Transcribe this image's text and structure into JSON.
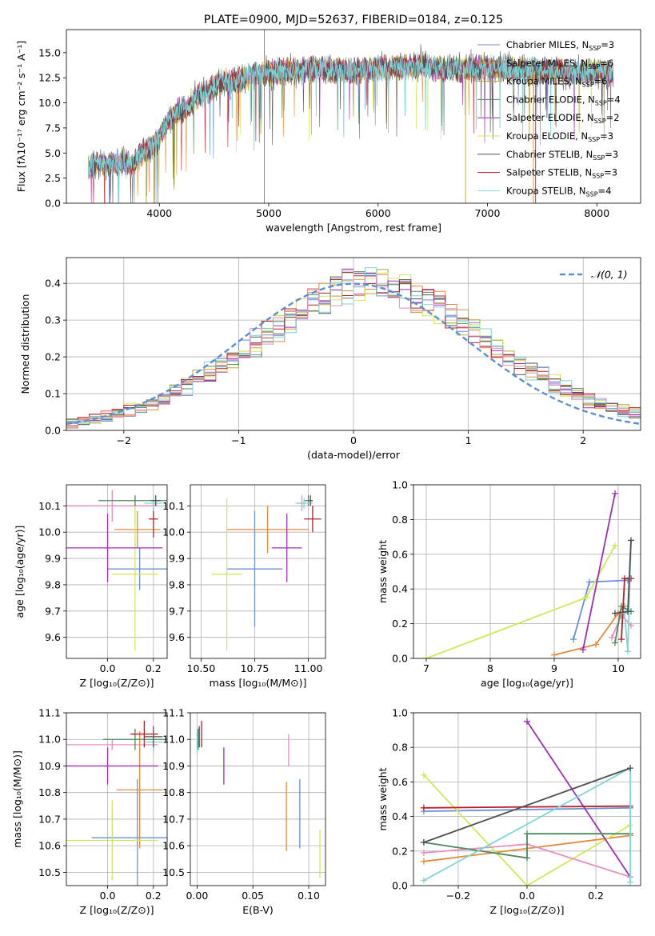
{
  "chart_data": [
    {
      "id": "spectrum",
      "type": "line",
      "title": "PLATE=0900, MJD=52637, FIBERID=0184, z=0.125",
      "xlabel": "wavelength [Angstrom, rest frame]",
      "ylabel": "Flux [fλ10⁻¹⁷ erg cm⁻² s⁻¹ A⁻¹]",
      "xlim": [
        3150,
        8400
      ],
      "ylim": [
        0,
        17.3
      ],
      "xticks": [
        4000,
        5000,
        6000,
        7000,
        8000
      ],
      "yticks": [
        0.0,
        2.5,
        5.0,
        7.5,
        10.0,
        12.5,
        15.0
      ],
      "legend_position": "right",
      "grid": false,
      "continuum": {
        "x": [
          3350,
          3450,
          3550,
          3650,
          3750,
          3850,
          3950,
          4050,
          4150,
          4250,
          4350,
          4450,
          4550,
          4650,
          4800,
          5000,
          5200,
          5400,
          5600,
          5800,
          6000,
          6200,
          6400,
          6600,
          6800,
          7000,
          7200,
          7400,
          7600,
          7800,
          8000,
          8150
        ],
        "y": [
          3.6,
          4.0,
          3.8,
          4.3,
          3.7,
          5.2,
          5.6,
          7.6,
          9.0,
          9.5,
          10.7,
          11.1,
          12.2,
          12.0,
          12.6,
          13.0,
          13.2,
          13.4,
          13.3,
          13.2,
          13.5,
          13.6,
          13.7,
          13.3,
          13.4,
          13.5,
          13.4,
          13.2,
          13.3,
          13.0,
          13.1,
          13.0
        ]
      },
      "series": [
        {
          "name": "Chabrier MILES, N_SSP=3",
          "label_main": "Chabrier MILES, N",
          "label_sub": "SSP",
          "label_tail": "=3",
          "color": "#6a8fd6"
        },
        {
          "name": "Salpeter MILES, N_SSP=6",
          "label_main": "Salpeter MILES, N",
          "label_sub": "SSP",
          "label_tail": "=6",
          "color": "#e5893a"
        },
        {
          "name": "Kroupa MILES, N_SSP=6",
          "label_main": "Kroupa MILES, N",
          "label_sub": "SSP",
          "label_tail": "=6",
          "color": "#b9a33b"
        },
        {
          "name": "Chabrier ELODIE, N_SSP=4",
          "label_main": "Chabrier ELODIE, N",
          "label_sub": "SSP",
          "label_tail": "=4",
          "color": "#4e8a5e"
        },
        {
          "name": "Salpeter ELODIE, N_SSP=2",
          "label_main": "Salpeter ELODIE, N",
          "label_sub": "SSP",
          "label_tail": "=2",
          "color": "#9b30b5"
        },
        {
          "name": "Kroupa ELODIE, N_SSP=3",
          "label_main": "Kroupa ELODIE, N",
          "label_sub": "SSP",
          "label_tail": "=3",
          "color": "#d4e65a"
        },
        {
          "name": "Chabrier STELIB, N_SSP=3",
          "label_main": "Chabrier STELIB, N",
          "label_sub": "SSP",
          "label_tail": "=3",
          "color": "#505050"
        },
        {
          "name": "Salpeter STELIB, N_SSP=3",
          "label_main": "Salpeter STELIB, N",
          "label_sub": "SSP",
          "label_tail": "=3",
          "color": "#b5202a"
        },
        {
          "name": "Kroupa STELIB, N_SSP=4",
          "label_main": "Kroupa STELIB, N",
          "label_sub": "SSP",
          "label_tail": "=4",
          "color": "#7fd6d6"
        }
      ],
      "spikes": [
        {
          "x": 3500,
          "y": 0,
          "color": "#b5202a"
        },
        {
          "x": 3880,
          "y": 0,
          "color": "#b9a33b"
        },
        {
          "x": 3950,
          "y": 0,
          "color": "#b9a33b"
        },
        {
          "x": 4960,
          "y": 0,
          "color": "#808080"
        },
        {
          "x": 4960,
          "y": 17.3,
          "color": "#808080"
        },
        {
          "x": 6800,
          "y": 0,
          "color": "#b9a33b"
        },
        {
          "x": 7420,
          "y": 0,
          "color": "#e5893a"
        },
        {
          "x": 7440,
          "y": 0,
          "color": "#b5202a"
        }
      ]
    },
    {
      "id": "residuals",
      "type": "histogram",
      "xlabel": "(data-model)/error",
      "ylabel": "Normed distribution",
      "xlim": [
        -2.5,
        2.5
      ],
      "ylim": [
        0,
        0.47
      ],
      "xticks": [
        -2,
        -1,
        0,
        1,
        2
      ],
      "yticks": [
        0.0,
        0.1,
        0.2,
        0.3,
        0.4
      ],
      "xtick_labels": [
        "−2",
        "−1",
        "0",
        "1",
        "2"
      ],
      "grid": true,
      "legend": "𝒩(0, 1)",
      "legend_position": "top-right",
      "gauss_color": "#5b8fd6",
      "bin_width": 0.1,
      "base_values": [
        0.02,
        0.025,
        0.032,
        0.04,
        0.048,
        0.056,
        0.066,
        0.078,
        0.091,
        0.106,
        0.122,
        0.139,
        0.158,
        0.177,
        0.198,
        0.219,
        0.241,
        0.263,
        0.285,
        0.306,
        0.327,
        0.346,
        0.363,
        0.378,
        0.389,
        0.397,
        0.4,
        0.398,
        0.391,
        0.38,
        0.366,
        0.349,
        0.33,
        0.309,
        0.288,
        0.266,
        0.244,
        0.222,
        0.201,
        0.181,
        0.162,
        0.144,
        0.127,
        0.111,
        0.097,
        0.084,
        0.072,
        0.062,
        0.053,
        0.045
      ]
    },
    {
      "id": "z-age",
      "type": "errorbar",
      "xlabel": "Z [log₁₀(Z/Z⊙)]",
      "ylabel": "age  [log₁₀(age/yr)]",
      "xlim": [
        -0.18,
        0.26
      ],
      "ylim": [
        9.52,
        10.18
      ],
      "xticks": [
        0.0,
        0.2
      ],
      "yticks": [
        9.6,
        9.7,
        9.8,
        9.9,
        10.0,
        10.1
      ],
      "grid": true,
      "points": [
        {
          "x": 0.14,
          "xerr": 0.14,
          "y": 9.86,
          "yerr": 0.08,
          "color": "#6a8fd6"
        },
        {
          "x": 0.13,
          "xerr": 0.1,
          "y": 10.01,
          "yerr": 0.07,
          "color": "#e5893a"
        },
        {
          "x": 0.12,
          "xerr": 0.1,
          "y": 9.84,
          "yerr": 0.29,
          "color": "#d4e65a"
        },
        {
          "x": 0.0,
          "xerr": 0.24,
          "y": 9.94,
          "yerr": 0.13,
          "color": "#9b30b5"
        },
        {
          "x": 0.02,
          "xerr": 0.2,
          "y": 10.1,
          "yerr": 0.06,
          "color": "#e58fbf"
        },
        {
          "x": 0.12,
          "xerr": 0.16,
          "y": 10.12,
          "yerr": 0.02,
          "color": "#4e8a5e"
        },
        {
          "x": 0.2,
          "xerr": 0.02,
          "y": 10.05,
          "yerr": 0.07,
          "color": "#b5202a"
        },
        {
          "x": 0.2,
          "xerr": 0.04,
          "y": 10.11,
          "yerr": 0.03,
          "color": "#7fd6d6"
        },
        {
          "x": 0.21,
          "xerr": 0.02,
          "y": 10.12,
          "yerr": 0.02,
          "color": "#505050"
        }
      ]
    },
    {
      "id": "mass-age",
      "type": "errorbar",
      "xlabel": "mass [log₁₀(M/M⊙)]",
      "ylabel": "",
      "xlim": [
        10.45,
        11.08
      ],
      "ylim": [
        9.52,
        10.18
      ],
      "xticks": [
        10.5,
        10.75,
        11.0
      ],
      "yticks": [
        9.6,
        9.7,
        9.8,
        9.9,
        10.0,
        10.1
      ],
      "grid": true,
      "points": [
        {
          "x": 10.75,
          "xerr": 0.13,
          "y": 9.86,
          "yerr": 0.22,
          "color": "#6a8fd6"
        },
        {
          "x": 10.81,
          "xerr": 0.19,
          "y": 10.01,
          "yerr": 0.09,
          "color": "#e5893a"
        },
        {
          "x": 10.62,
          "xerr": 0.07,
          "y": 9.84,
          "yerr": 0.29,
          "color": "#d4e65a"
        },
        {
          "x": 10.9,
          "xerr": 0.07,
          "y": 9.94,
          "yerr": 0.13,
          "color": "#9b30b5"
        },
        {
          "x": 10.97,
          "xerr": 0.02,
          "y": 10.11,
          "yerr": 0.03,
          "color": "#e58fbf"
        },
        {
          "x": 11.0,
          "xerr": 0.02,
          "y": 10.12,
          "yerr": 0.02,
          "color": "#4e8a5e"
        },
        {
          "x": 11.02,
          "xerr": 0.04,
          "y": 10.05,
          "yerr": 0.05,
          "color": "#b5202a"
        },
        {
          "x": 10.98,
          "xerr": 0.04,
          "y": 10.11,
          "yerr": 0.02,
          "color": "#7fd6d6"
        },
        {
          "x": 11.01,
          "xerr": 0.01,
          "y": 10.12,
          "yerr": 0.02,
          "color": "#505050"
        }
      ]
    },
    {
      "id": "age-weight",
      "type": "line",
      "xlabel": "age  [log₁₀(age/yr)]",
      "ylabel": "mass weight",
      "xlim": [
        6.8,
        10.35
      ],
      "ylim": [
        0,
        1.0
      ],
      "xticks": [
        7,
        8,
        9,
        10
      ],
      "yticks": [
        0.0,
        0.2,
        0.4,
        0.6,
        0.8,
        1.0
      ],
      "grid": true,
      "series": [
        {
          "color": "#6a8fd6",
          "x": [
            9.3,
            9.55,
            10.15
          ],
          "y": [
            0.11,
            0.44,
            0.45
          ]
        },
        {
          "color": "#e5893a",
          "x": [
            9.0,
            9.65,
            10.0,
            10.1
          ],
          "y": [
            0.02,
            0.08,
            0.26,
            0.3
          ]
        },
        {
          "color": "#d4e65a",
          "x": [
            7.0,
            9.5,
            9.95
          ],
          "y": [
            0.0,
            0.35,
            0.65
          ]
        },
        {
          "color": "#9b30b5",
          "x": [
            9.45,
            9.95
          ],
          "y": [
            0.05,
            0.95
          ]
        },
        {
          "color": "#e58fbf",
          "x": [
            9.9,
            10.05,
            10.2
          ],
          "y": [
            0.12,
            0.25,
            0.19
          ]
        },
        {
          "color": "#4e8a5e",
          "x": [
            9.95,
            10.05,
            10.2
          ],
          "y": [
            0.09,
            0.3,
            0.27
          ]
        },
        {
          "color": "#b5202a",
          "x": [
            10.05,
            10.1,
            10.2
          ],
          "y": [
            0.11,
            0.46,
            0.46
          ]
        },
        {
          "color": "#7fd6d6",
          "x": [
            10.1,
            10.15,
            10.2
          ],
          "y": [
            0.26,
            0.04,
            0.68
          ]
        },
        {
          "color": "#505050",
          "x": [
            9.95,
            10.15,
            10.2
          ],
          "y": [
            0.26,
            0.27,
            0.68
          ]
        }
      ]
    },
    {
      "id": "z-mass",
      "type": "errorbar",
      "xlabel": "Z [log₁₀(Z/Z⊙)]",
      "ylabel": "mass [log₁₀(M/M⊙)]",
      "xlim": [
        -0.18,
        0.26
      ],
      "ylim": [
        10.45,
        11.1
      ],
      "xticks": [
        0.0,
        0.2
      ],
      "yticks": [
        10.5,
        10.6,
        10.7,
        10.8,
        10.9,
        11.0,
        11.1
      ],
      "grid": true,
      "points": [
        {
          "x": 0.13,
          "xerr": 0.2,
          "y": 10.63,
          "yerr": 0.22,
          "color": "#6a8fd6"
        },
        {
          "x": 0.14,
          "xerr": 0.1,
          "y": 10.81,
          "yerr": 0.22,
          "color": "#e5893a"
        },
        {
          "x": 0.02,
          "xerr": 0.2,
          "y": 10.62,
          "yerr": 0.15,
          "color": "#d4e65a"
        },
        {
          "x": 0.0,
          "xerr": 0.22,
          "y": 10.9,
          "yerr": 0.07,
          "color": "#9b30b5"
        },
        {
          "x": 0.02,
          "xerr": 0.2,
          "y": 10.98,
          "yerr": 0.02,
          "color": "#e58fbf"
        },
        {
          "x": 0.12,
          "xerr": 0.14,
          "y": 11.0,
          "yerr": 0.04,
          "color": "#4e8a5e"
        },
        {
          "x": 0.16,
          "xerr": 0.06,
          "y": 11.02,
          "yerr": 0.05,
          "color": "#b5202a"
        },
        {
          "x": 0.2,
          "xerr": 0.04,
          "y": 10.99,
          "yerr": 0.04,
          "color": "#7fd6d6"
        },
        {
          "x": 0.2,
          "xerr": 0.04,
          "y": 11.01,
          "yerr": 0.04,
          "color": "#505050"
        }
      ]
    },
    {
      "id": "ebv-mass",
      "type": "errorbar",
      "xlabel": "E(B-V)",
      "ylabel": "",
      "xlim": [
        -0.006,
        0.115
      ],
      "ylim": [
        10.45,
        11.1
      ],
      "xticks": [
        0.0,
        0.05,
        0.1
      ],
      "xtick_labels": [
        "0.00",
        "0.05",
        "0.10"
      ],
      "yticks": [
        10.5,
        10.6,
        10.7,
        10.8,
        10.9,
        11.0,
        11.1
      ],
      "grid": true,
      "points": [
        {
          "x": 0.092,
          "xerr": 0,
          "y": 10.72,
          "yerr": 0.13,
          "color": "#6a8fd6"
        },
        {
          "x": 0.08,
          "xerr": 0,
          "y": 10.71,
          "yerr": 0.13,
          "color": "#e5893a"
        },
        {
          "x": 0.11,
          "xerr": 0,
          "y": 10.57,
          "yerr": 0.09,
          "color": "#d4e65a"
        },
        {
          "x": 0.024,
          "xerr": 0,
          "y": 10.9,
          "yerr": 0.07,
          "color": "#9b30b5"
        },
        {
          "x": 0.082,
          "xerr": 0,
          "y": 10.96,
          "yerr": 0.06,
          "color": "#e58fbf"
        },
        {
          "x": 0.001,
          "xerr": 0,
          "y": 11.0,
          "yerr": 0.04,
          "color": "#4e8a5e"
        },
        {
          "x": 0.004,
          "xerr": 0,
          "y": 11.02,
          "yerr": 0.05,
          "color": "#b5202a"
        },
        {
          "x": 0.0,
          "xerr": 0,
          "y": 10.99,
          "yerr": 0.04,
          "color": "#7fd6d6"
        },
        {
          "x": 0.002,
          "xerr": 0,
          "y": 11.01,
          "yerr": 0.04,
          "color": "#505050"
        }
      ]
    },
    {
      "id": "z-weight",
      "type": "line",
      "xlabel": "Z [log₁₀(Z/Z⊙)]",
      "ylabel": "mass weight",
      "xlim": [
        -0.33,
        0.33
      ],
      "ylim": [
        0,
        1.0
      ],
      "xticks": [
        -0.2,
        0.0,
        0.2
      ],
      "xtick_labels": [
        "−0.2",
        "0.0",
        "0.2"
      ],
      "yticks": [
        0.0,
        0.2,
        0.4,
        0.6,
        0.8,
        1.0
      ],
      "grid": true,
      "series": [
        {
          "color": "#6a8fd6",
          "x": [
            -0.3,
            0.3
          ],
          "y": [
            0.43,
            0.45
          ]
        },
        {
          "color": "#e5893a",
          "x": [
            -0.3,
            0.3
          ],
          "y": [
            0.14,
            0.29
          ]
        },
        {
          "color": "#d4e65a",
          "x": [
            -0.3,
            0.0,
            0.3
          ],
          "y": [
            0.64,
            0.0,
            0.35
          ]
        },
        {
          "color": "#9b30b5",
          "x": [
            0.0,
            0.3
          ],
          "y": [
            0.95,
            0.05
          ]
        },
        {
          "color": "#e58fbf",
          "x": [
            -0.3,
            0.0,
            0.3
          ],
          "y": [
            0.19,
            0.24,
            0.05
          ]
        },
        {
          "color": "#4e8a5e",
          "x": [
            -0.3,
            0.0,
            0.0,
            0.3
          ],
          "y": [
            0.25,
            0.16,
            0.3,
            0.3
          ]
        },
        {
          "color": "#b5202a",
          "x": [
            -0.3,
            0.3
          ],
          "y": [
            0.45,
            0.46
          ]
        },
        {
          "color": "#7fd6d6",
          "x": [
            -0.3,
            0.3,
            0.3
          ],
          "y": [
            0.03,
            0.68,
            0.02
          ]
        },
        {
          "color": "#505050",
          "x": [
            -0.3,
            0.3
          ],
          "y": [
            0.25,
            0.68
          ]
        }
      ]
    }
  ]
}
